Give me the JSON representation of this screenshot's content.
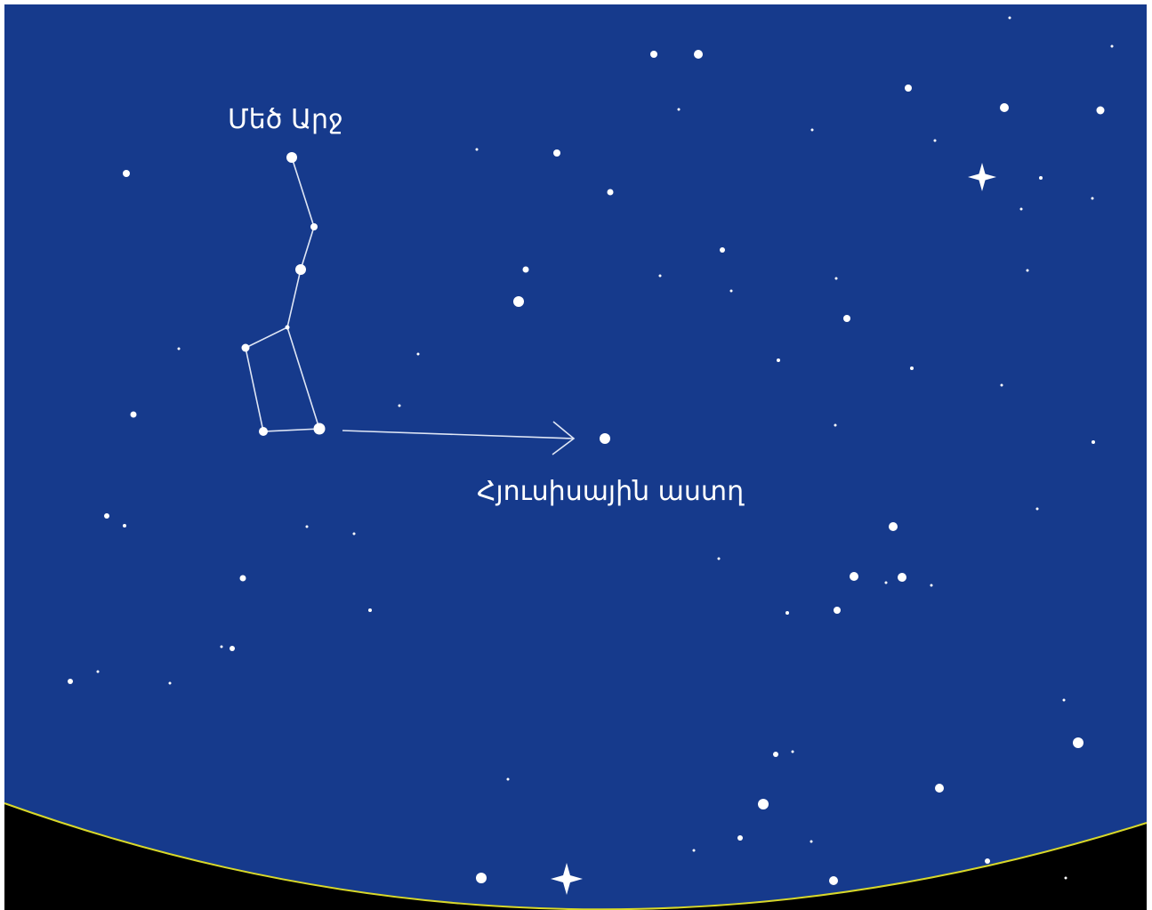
{
  "labels": {
    "constellation": "Մեծ Արջ",
    "polaris": "Հյուսիսային աստղ"
  }
}
